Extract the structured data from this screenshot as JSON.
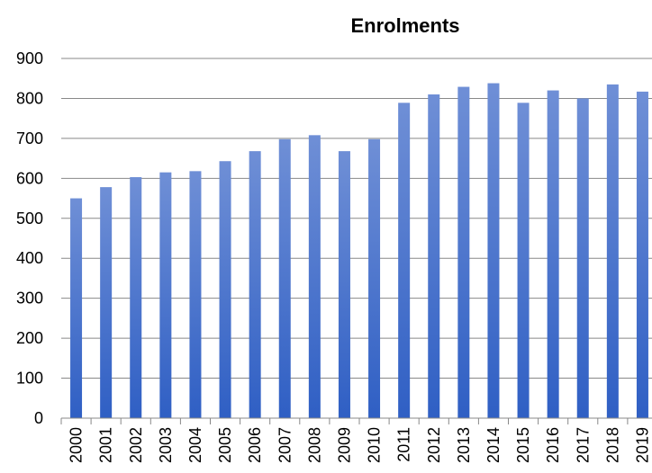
{
  "chart_data": {
    "type": "bar",
    "title": "Enrolments",
    "xlabel": "",
    "ylabel": "",
    "categories": [
      "2000",
      "2001",
      "2002",
      "2003",
      "2004",
      "2005",
      "2006",
      "2007",
      "2008",
      "2009",
      "2010",
      "2011",
      "2012",
      "2013",
      "2014",
      "2015",
      "2016",
      "2017",
      "2018",
      "2019"
    ],
    "series": [
      {
        "values": [
          550,
          578,
          603,
          615,
          618,
          643,
          668,
          698,
          708,
          668,
          698,
          789,
          810,
          829,
          838,
          789,
          820,
          800,
          835,
          817
        ]
      }
    ],
    "ylim": [
      0,
      900
    ],
    "yticks": [
      "0",
      "100",
      "200",
      "300",
      "400",
      "500",
      "600",
      "700",
      "800",
      "900"
    ],
    "grid": true,
    "legend": "none",
    "colors": {
      "bar_top": "#6f8fd6",
      "bar_bottom": "#2f5fc4"
    }
  }
}
